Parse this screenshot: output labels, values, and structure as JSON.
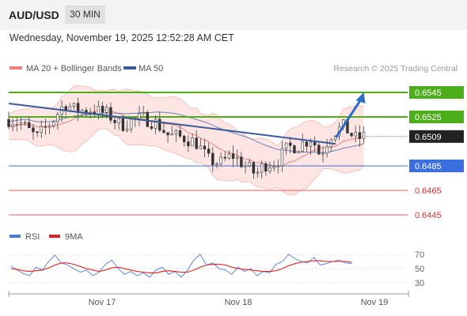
{
  "header": {
    "symbol": "AUD/USD",
    "timeframe": "30 MIN"
  },
  "timestamp": "Wednesday, November 19, 2025 12:52:28 AM CET",
  "legend": {
    "ma20": "MA 20 + Bollinger Bands",
    "ma50": "MA 50",
    "ma20_color": "#f08080",
    "ma50_color": "#3a5a9a"
  },
  "credit": "Research © 2025 Trading Central",
  "rsi_legend": {
    "rsi": "RSI",
    "ma": "9MA",
    "rsi_color": "#4a7be0",
    "ma_color": "#e02020"
  },
  "chart_data": [
    {
      "type": "candlestick",
      "title": "AUD/USD 30 MIN",
      "y_range": [
        0.6445,
        0.6545
      ],
      "x_tick_labels": [
        "Nov 17",
        "Nov 18",
        "Nov 19"
      ],
      "current_price": {
        "label": "0.6509",
        "value": 0.6509,
        "color": "#222222"
      },
      "levels": [
        {
          "label": "0.6545",
          "value": 0.6545,
          "kind": "target",
          "color": "#4caf1a"
        },
        {
          "label": "0.6525",
          "value": 0.6525,
          "kind": "resistance",
          "color": "#4caf1a"
        },
        {
          "label": "0.6485",
          "value": 0.6485,
          "kind": "pivot",
          "color": "#3b6fe0"
        },
        {
          "label": "0.6465",
          "value": 0.6465,
          "kind": "support",
          "color": "#e06060"
        },
        {
          "label": "0.6445",
          "value": 0.6445,
          "kind": "support",
          "color": "#e06060"
        }
      ],
      "trendline": {
        "from": [
          0.0,
          0.6536
        ],
        "to": [
          0.82,
          0.6503
        ],
        "color": "#3a5a9a"
      },
      "projection_arrow": {
        "from": [
          0.82,
          0.6508
        ],
        "to": [
          0.89,
          0.6545
        ],
        "color": "#2a6cc4"
      },
      "price_path": [
        [
          0.0,
          0.6523
        ],
        [
          0.03,
          0.652
        ],
        [
          0.07,
          0.6508
        ],
        [
          0.11,
          0.6522
        ],
        [
          0.14,
          0.6536
        ],
        [
          0.17,
          0.653
        ],
        [
          0.21,
          0.6531
        ],
        [
          0.25,
          0.6527
        ],
        [
          0.28,
          0.6518
        ],
        [
          0.31,
          0.6522
        ],
        [
          0.34,
          0.6524
        ],
        [
          0.37,
          0.652
        ],
        [
          0.4,
          0.651
        ],
        [
          0.44,
          0.6508
        ],
        [
          0.47,
          0.6504
        ],
        [
          0.5,
          0.649
        ],
        [
          0.53,
          0.6487
        ],
        [
          0.56,
          0.6494
        ],
        [
          0.59,
          0.6486
        ],
        [
          0.62,
          0.6478
        ],
        [
          0.64,
          0.6486
        ],
        [
          0.67,
          0.6488
        ],
        [
          0.7,
          0.65
        ],
        [
          0.73,
          0.6502
        ],
        [
          0.76,
          0.6508
        ],
        [
          0.78,
          0.6494
        ],
        [
          0.81,
          0.6512
        ],
        [
          0.84,
          0.6517
        ],
        [
          0.87,
          0.6507
        ],
        [
          0.89,
          0.6509
        ]
      ]
    },
    {
      "type": "line",
      "title": "RSI",
      "y_ticks": [
        "70",
        "50",
        "30"
      ],
      "y_range": [
        20,
        80
      ],
      "reference_lines": [
        30,
        50,
        70
      ],
      "series": [
        {
          "name": "RSI",
          "color": "#4a7be0",
          "values": [
            54,
            48,
            43,
            40,
            52,
            48,
            60,
            69,
            58,
            55,
            50,
            45,
            48,
            40,
            45,
            56,
            62,
            50,
            42,
            46,
            40,
            44,
            38,
            48,
            52,
            42,
            46,
            38,
            48,
            62,
            70,
            55,
            58,
            50,
            48,
            42,
            52,
            46,
            50,
            40,
            46,
            44,
            56,
            60,
            70,
            64,
            60,
            58,
            66,
            55,
            57,
            60,
            62,
            58,
            57
          ]
        },
        {
          "name": "9MA",
          "color": "#e02020",
          "values": [
            50,
            49,
            47,
            46,
            47,
            48,
            51,
            55,
            58,
            58,
            56,
            53,
            50,
            48,
            46,
            48,
            51,
            52,
            50,
            48,
            46,
            45,
            44,
            44,
            46,
            47,
            46,
            45,
            45,
            48,
            52,
            55,
            56,
            56,
            55,
            52,
            50,
            49,
            48,
            47,
            46,
            46,
            47,
            50,
            54,
            57,
            59,
            60,
            61,
            61,
            60,
            60,
            60,
            60,
            59
          ]
        }
      ]
    }
  ]
}
